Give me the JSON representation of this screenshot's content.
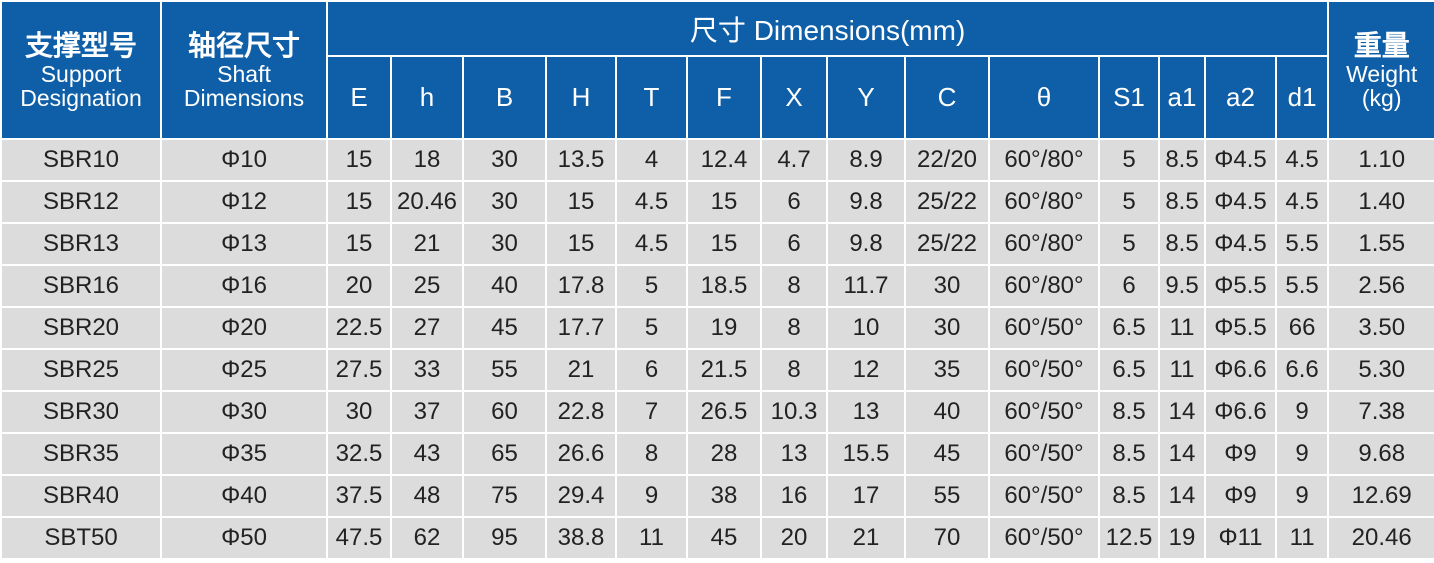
{
  "header": {
    "designation_cn": "支撑型号",
    "designation_en": "Support Designation",
    "shaft_cn": "轴径尺寸",
    "shaft_en": "Shaft Dimensions",
    "dimensions": "尺寸 Dimensions(mm)",
    "weight_cn": "重量",
    "weight_en": "Weight (kg)",
    "columns": [
      "E",
      "h",
      "B",
      "H",
      "T",
      "F",
      "X",
      "Y",
      "C",
      "θ",
      "S1",
      "a1",
      "a2",
      "d1"
    ]
  },
  "rows": [
    [
      "SBR10",
      "Φ10",
      "15",
      "18",
      "30",
      "13.5",
      "4",
      "12.4",
      "4.7",
      "8.9",
      "22/20",
      "60°/80°",
      "5",
      "8.5",
      "Φ4.5",
      "4.5",
      "1.10"
    ],
    [
      "SBR12",
      "Φ12",
      "15",
      "20.46",
      "30",
      "15",
      "4.5",
      "15",
      "6",
      "9.8",
      "25/22",
      "60°/80°",
      "5",
      "8.5",
      "Φ4.5",
      "4.5",
      "1.40"
    ],
    [
      "SBR13",
      "Φ13",
      "15",
      "21",
      "30",
      "15",
      "4.5",
      "15",
      "6",
      "9.8",
      "25/22",
      "60°/80°",
      "5",
      "8.5",
      "Φ4.5",
      "5.5",
      "1.55"
    ],
    [
      "SBR16",
      "Φ16",
      "20",
      "25",
      "40",
      "17.8",
      "5",
      "18.5",
      "8",
      "11.7",
      "30",
      "60°/80°",
      "6",
      "9.5",
      "Φ5.5",
      "5.5",
      "2.56"
    ],
    [
      "SBR20",
      "Φ20",
      "22.5",
      "27",
      "45",
      "17.7",
      "5",
      "19",
      "8",
      "10",
      "30",
      "60°/50°",
      "6.5",
      "11",
      "Φ5.5",
      "66",
      "3.50"
    ],
    [
      "SBR25",
      "Φ25",
      "27.5",
      "33",
      "55",
      "21",
      "6",
      "21.5",
      "8",
      "12",
      "35",
      "60°/50°",
      "6.5",
      "11",
      "Φ6.6",
      "6.6",
      "5.30"
    ],
    [
      "SBR30",
      "Φ30",
      "30",
      "37",
      "60",
      "22.8",
      "7",
      "26.5",
      "10.3",
      "13",
      "40",
      "60°/50°",
      "8.5",
      "14",
      "Φ6.6",
      "9",
      "7.38"
    ],
    [
      "SBR35",
      "Φ35",
      "32.5",
      "43",
      "65",
      "26.6",
      "8",
      "28",
      "13",
      "15.5",
      "45",
      "60°/50°",
      "8.5",
      "14",
      "Φ9",
      "9",
      "9.68"
    ],
    [
      "SBR40",
      "Φ40",
      "37.5",
      "48",
      "75",
      "29.4",
      "9",
      "38",
      "16",
      "17",
      "55",
      "60°/50°",
      "8.5",
      "14",
      "Φ9",
      "9",
      "12.69"
    ],
    [
      "SBT50",
      "Φ50",
      "47.5",
      "62",
      "95",
      "38.8",
      "11",
      "45",
      "20",
      "21",
      "70",
      "60°/50°",
      "12.5",
      "19",
      "Φ11",
      "11",
      "20.46"
    ]
  ]
}
